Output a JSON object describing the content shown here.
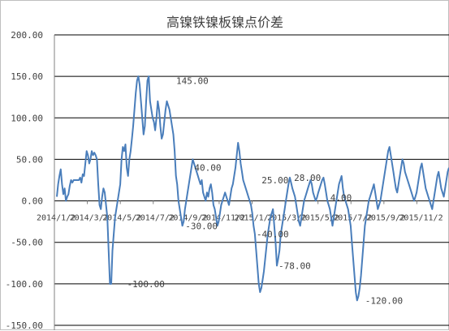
{
  "chart_data": {
    "type": "line",
    "title": "高镍铁镍板镍点价差",
    "xlabel": "",
    "ylabel": "",
    "ylim": [
      -150,
      200
    ],
    "y_ticks": [
      "200.00",
      "150.00",
      "100.00",
      "50.00",
      "0.00",
      "-50.00",
      "-100.00",
      "-150.00"
    ],
    "y_tick_values": [
      200,
      150,
      100,
      50,
      0,
      -50,
      -100,
      -150
    ],
    "x_ticks": [
      "2014/1/2",
      "2014/3/2",
      "2014/5/2",
      "2014/7/2",
      "2014/9/2",
      "2014/11/2",
      "2015/1/2",
      "2015/3/2",
      "2015/5/2",
      "2015/7/2",
      "2015/9/2",
      "2015/11/2"
    ],
    "grid": true,
    "legend": "none",
    "colors": {
      "line": "#4a7ebb",
      "grid": "#000000",
      "axis": "#808080"
    },
    "annotations": [
      {
        "label": "145.00",
        "x": 91,
        "y": 145
      },
      {
        "label": "40.00",
        "x": 105,
        "y": 40
      },
      {
        "label": "-30.00",
        "x": 98,
        "y": -30
      },
      {
        "label": "-100.00",
        "x": 53,
        "y": -100
      },
      {
        "label": "25.00",
        "x": 157,
        "y": 25
      },
      {
        "label": "-40.00",
        "x": 153,
        "y": -40
      },
      {
        "label": "-78.00",
        "x": 170,
        "y": -78
      },
      {
        "label": "28.00",
        "x": 182,
        "y": 28
      },
      {
        "label": "4.00",
        "x": 210,
        "y": 4
      },
      {
        "label": "-120.00",
        "x": 237,
        "y": -120
      }
    ],
    "series": [
      {
        "values": [
          5,
          20,
          30,
          38,
          20,
          8,
          15,
          0,
          5,
          8,
          18,
          25,
          22,
          25,
          25,
          25,
          25,
          25,
          28,
          22,
          32,
          30,
          45,
          60,
          55,
          45,
          50,
          60,
          55,
          58,
          55,
          50,
          20,
          -5,
          -10,
          5,
          15,
          10,
          -5,
          -20,
          -60,
          -100,
          -100,
          -60,
          -40,
          -20,
          -10,
          0,
          10,
          20,
          50,
          65,
          60,
          68,
          40,
          30,
          50,
          60,
          75,
          90,
          110,
          130,
          145,
          150,
          140,
          120,
          100,
          80,
          90,
          120,
          145,
          150,
          120,
          110,
          100,
          95,
          85,
          100,
          120,
          110,
          90,
          75,
          80,
          95,
          110,
          120,
          115,
          110,
          100,
          90,
          80,
          60,
          30,
          20,
          0,
          -10,
          -20,
          -30,
          -25,
          -10,
          0,
          10,
          20,
          30,
          40,
          50,
          45,
          40,
          35,
          30,
          25,
          20,
          25,
          10,
          5,
          0,
          10,
          5,
          15,
          20,
          10,
          -5,
          -10,
          -20,
          -30,
          -25,
          -15,
          -5,
          0,
          5,
          10,
          5,
          0,
          -5,
          5,
          15,
          20,
          30,
          40,
          55,
          70,
          60,
          45,
          35,
          25,
          20,
          15,
          10,
          5,
          0,
          -5,
          -15,
          -30,
          -40,
          -60,
          -80,
          -100,
          -110,
          -105,
          -95,
          -85,
          -70,
          -55,
          -40,
          -30,
          -20,
          -15,
          -10,
          -30,
          -50,
          -78,
          -70,
          -60,
          -40,
          -30,
          -20,
          -10,
          0,
          10,
          20,
          28,
          22,
          15,
          10,
          5,
          -5,
          -15,
          -25,
          -30,
          -20,
          -10,
          0,
          5,
          10,
          15,
          20,
          25,
          20,
          10,
          5,
          0,
          4,
          10,
          15,
          20,
          25,
          28,
          20,
          10,
          0,
          -5,
          -10,
          -20,
          -30,
          -20,
          -10,
          0,
          10,
          20,
          25,
          30,
          15,
          5,
          0,
          -5,
          -10,
          -20,
          -30,
          -50,
          -70,
          -90,
          -110,
          -120,
          -115,
          -105,
          -90,
          -70,
          -50,
          -30,
          -20,
          -10,
          0,
          5,
          10,
          15,
          20,
          10,
          0,
          -10,
          -5,
          0,
          10,
          20,
          30,
          40,
          50,
          60,
          65,
          55,
          45,
          35,
          25,
          15,
          10,
          20,
          30,
          40,
          50,
          45,
          35,
          30,
          25,
          20,
          15,
          10,
          5,
          0,
          5,
          10,
          20,
          30,
          40,
          45,
          35,
          25,
          15,
          10,
          5,
          0,
          -5,
          -10,
          0,
          10,
          20,
          30,
          35,
          25,
          15,
          10,
          5,
          15,
          25,
          35,
          40
        ]
      }
    ]
  }
}
